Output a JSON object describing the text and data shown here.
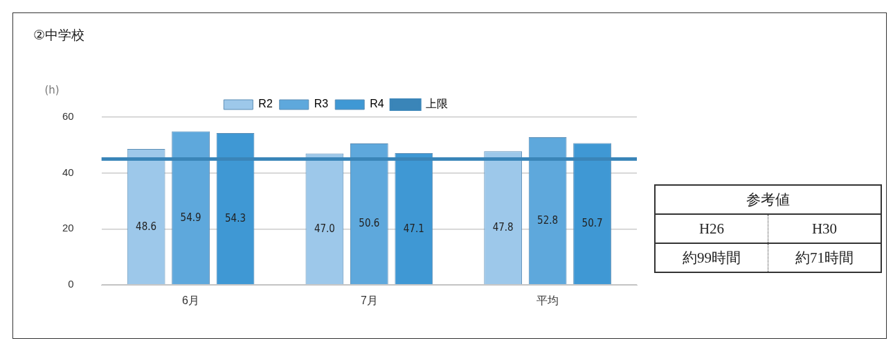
{
  "chart_data": {
    "type": "bar",
    "title": "②中学校",
    "ylabel": "(h)",
    "categories": [
      "6月",
      "7月",
      "平均"
    ],
    "series": [
      {
        "name": "R2",
        "color": "#9dc8ea",
        "values": [
          48.6,
          47.0,
          47.8
        ],
        "value_labels": [
          "48.6",
          "47.0",
          "47.8"
        ]
      },
      {
        "name": "R3",
        "color": "#5ea8dc",
        "values": [
          54.9,
          50.6,
          52.8
        ],
        "value_labels": [
          "54.9",
          "50.6",
          "52.8"
        ]
      },
      {
        "name": "R4",
        "color": "#3f98d4",
        "values": [
          54.3,
          47.1,
          50.7
        ],
        "value_labels": [
          "54.3",
          "47.1",
          "50.7"
        ]
      }
    ],
    "ref_lines": [
      {
        "axis": "y",
        "value": 45,
        "label": "上限",
        "color": "#3a85b8"
      }
    ],
    "ylim": [
      0,
      60
    ],
    "yticks": [
      0,
      20,
      40,
      60
    ],
    "grid": "y",
    "legend": "top",
    "annotations": [
      "参考値",
      "H26",
      "H30",
      "約99時間",
      "約71時間"
    ]
  }
}
